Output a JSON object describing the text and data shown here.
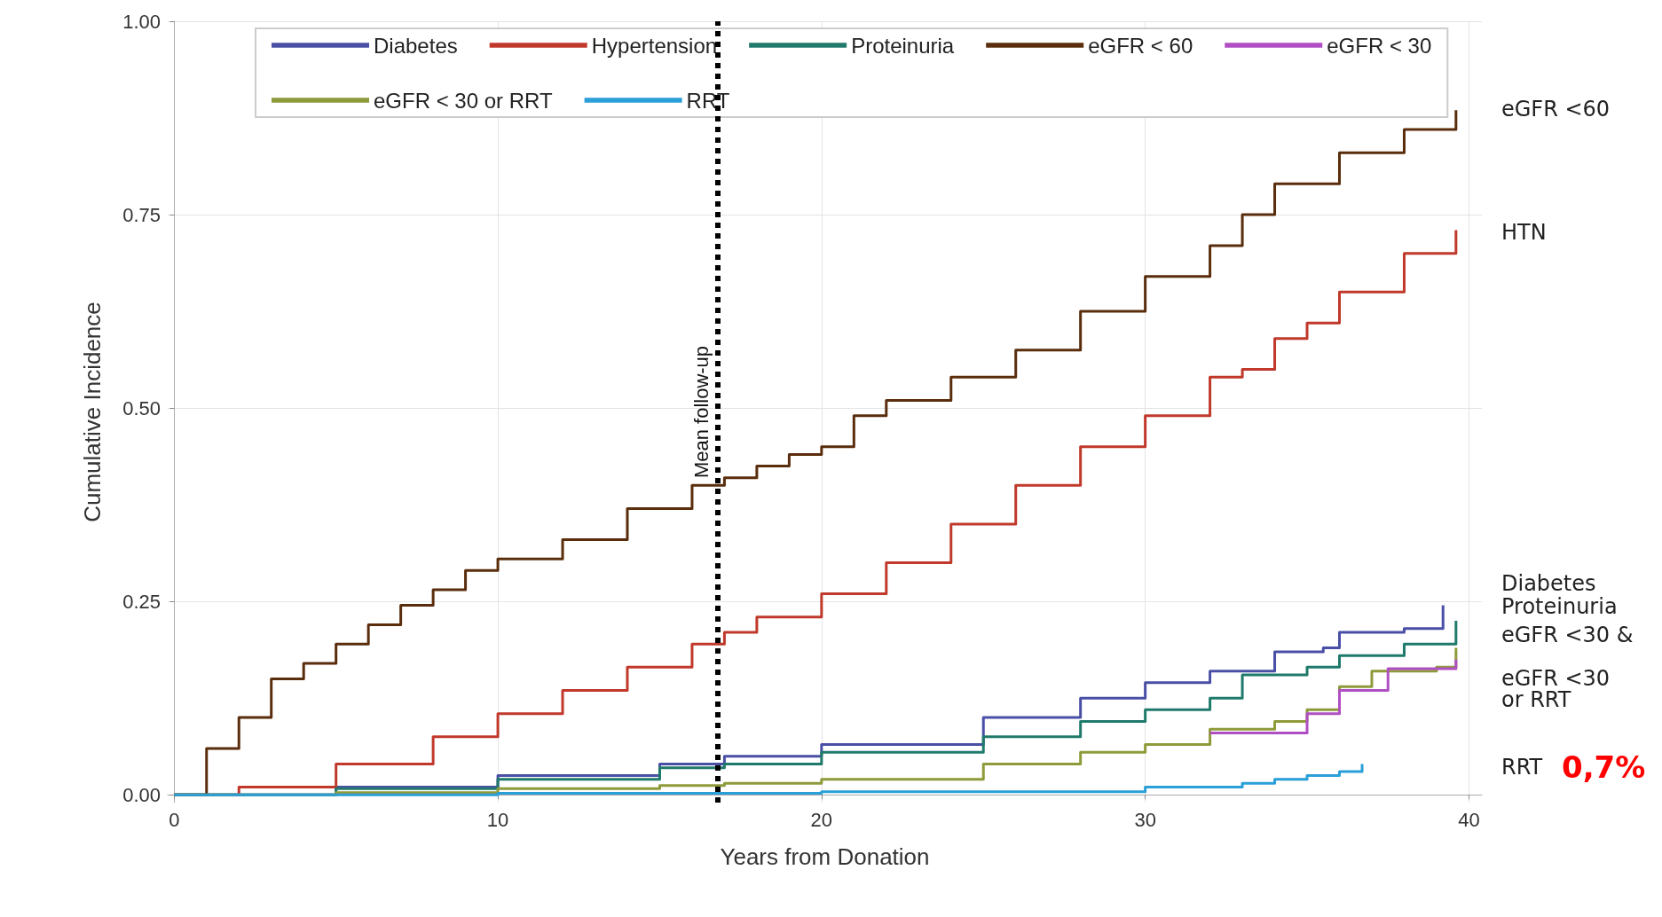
{
  "chart_data": {
    "type": "step",
    "xlabel": "Years from Donation",
    "ylabel": "Cumulative Incidence",
    "xlim": [
      -0.2,
      40.4
    ],
    "ylim": [
      -0.01,
      1.0
    ],
    "xticks": [
      0,
      10,
      20,
      30,
      40
    ],
    "yticks": [
      {
        "value": 0,
        "label": "0.00"
      },
      {
        "value": 0.25,
        "label": "0.25"
      },
      {
        "value": 0.5,
        "label": "0.50"
      },
      {
        "value": 0.75,
        "label": "0.75"
      },
      {
        "value": 1,
        "label": "1.00"
      }
    ],
    "grid": true,
    "legend": "top",
    "line_style": "solid",
    "series": [
      {
        "name": "Diabetes",
        "color": "#4a4fa6",
        "x": [
          0,
          5,
          10,
          15,
          17,
          20,
          25,
          28,
          30,
          32,
          34,
          35.5,
          36,
          38,
          39.2
        ],
        "values": [
          0,
          0.01,
          0.025,
          0.04,
          0.05,
          0.065,
          0.1,
          0.125,
          0.145,
          0.16,
          0.185,
          0.19,
          0.21,
          0.215,
          0.245
        ]
      },
      {
        "name": "Hypertension",
        "color": "#c0392b",
        "x": [
          0,
          2,
          5,
          8,
          10,
          12,
          14,
          16,
          17,
          18,
          20,
          22,
          24,
          26,
          28,
          30,
          32,
          33,
          34,
          35,
          36,
          38,
          39.6
        ],
        "values": [
          0,
          0.01,
          0.04,
          0.075,
          0.105,
          0.135,
          0.165,
          0.195,
          0.21,
          0.23,
          0.26,
          0.3,
          0.35,
          0.4,
          0.45,
          0.49,
          0.54,
          0.55,
          0.59,
          0.61,
          0.65,
          0.7,
          0.73
        ]
      },
      {
        "name": "Proteinuria",
        "color": "#1f7a6b",
        "x": [
          0,
          5,
          10,
          15,
          17,
          20,
          25,
          28,
          30,
          32,
          33,
          35,
          36,
          38,
          39.6
        ],
        "values": [
          0,
          0.008,
          0.02,
          0.035,
          0.04,
          0.055,
          0.075,
          0.095,
          0.11,
          0.125,
          0.155,
          0.165,
          0.18,
          0.195,
          0.225
        ]
      },
      {
        "name": "eGFR < 60",
        "color": "#5a2d0c",
        "x": [
          0,
          0.9,
          1,
          2,
          3,
          4,
          5,
          6,
          7,
          8,
          9,
          10,
          12,
          14,
          16,
          17,
          18,
          19,
          20,
          21,
          22,
          24,
          26,
          28,
          30,
          32,
          33,
          34,
          36,
          38,
          39.6
        ],
        "values": [
          0,
          0,
          0.06,
          0.1,
          0.15,
          0.17,
          0.195,
          0.22,
          0.245,
          0.265,
          0.29,
          0.305,
          0.33,
          0.37,
          0.4,
          0.41,
          0.425,
          0.44,
          0.45,
          0.49,
          0.51,
          0.54,
          0.575,
          0.625,
          0.67,
          0.71,
          0.75,
          0.79,
          0.83,
          0.86,
          0.885
        ]
      },
      {
        "name": "eGFR < 30",
        "color": "#b04fc4",
        "x": [
          32,
          35,
          36,
          37.5,
          39.6
        ],
        "values": [
          0.08,
          0.105,
          0.135,
          0.163,
          0.175
        ]
      },
      {
        "name": "eGFR < 30 or RRT",
        "color": "#8f9a3a",
        "x": [
          0,
          5,
          10,
          15,
          17,
          20,
          25,
          28,
          30,
          32,
          34,
          35,
          36,
          37,
          39,
          39.6
        ],
        "values": [
          0,
          0.003,
          0.008,
          0.012,
          0.015,
          0.02,
          0.04,
          0.055,
          0.065,
          0.085,
          0.095,
          0.11,
          0.14,
          0.16,
          0.165,
          0.19
        ]
      },
      {
        "name": "RRT",
        "color": "#2a9fd8",
        "x": [
          0,
          10,
          20,
          30,
          33,
          34,
          35,
          36,
          36.7
        ],
        "values": [
          0,
          0.002,
          0.004,
          0.01,
          0.015,
          0.02,
          0.025,
          0.03,
          0.04
        ]
      }
    ],
    "ref_lines": [
      {
        "axis": "x",
        "value": 16.8,
        "label": "Mean follow-up",
        "color": "#000000",
        "line_style": "dotted"
      }
    ],
    "annotations": [
      "eGFR <60",
      "HTN",
      "Diabetes",
      "Proteinuria",
      "eGFR <30 &",
      "eGFR <30 or RRT",
      "RRT",
      "0,7%"
    ]
  }
}
